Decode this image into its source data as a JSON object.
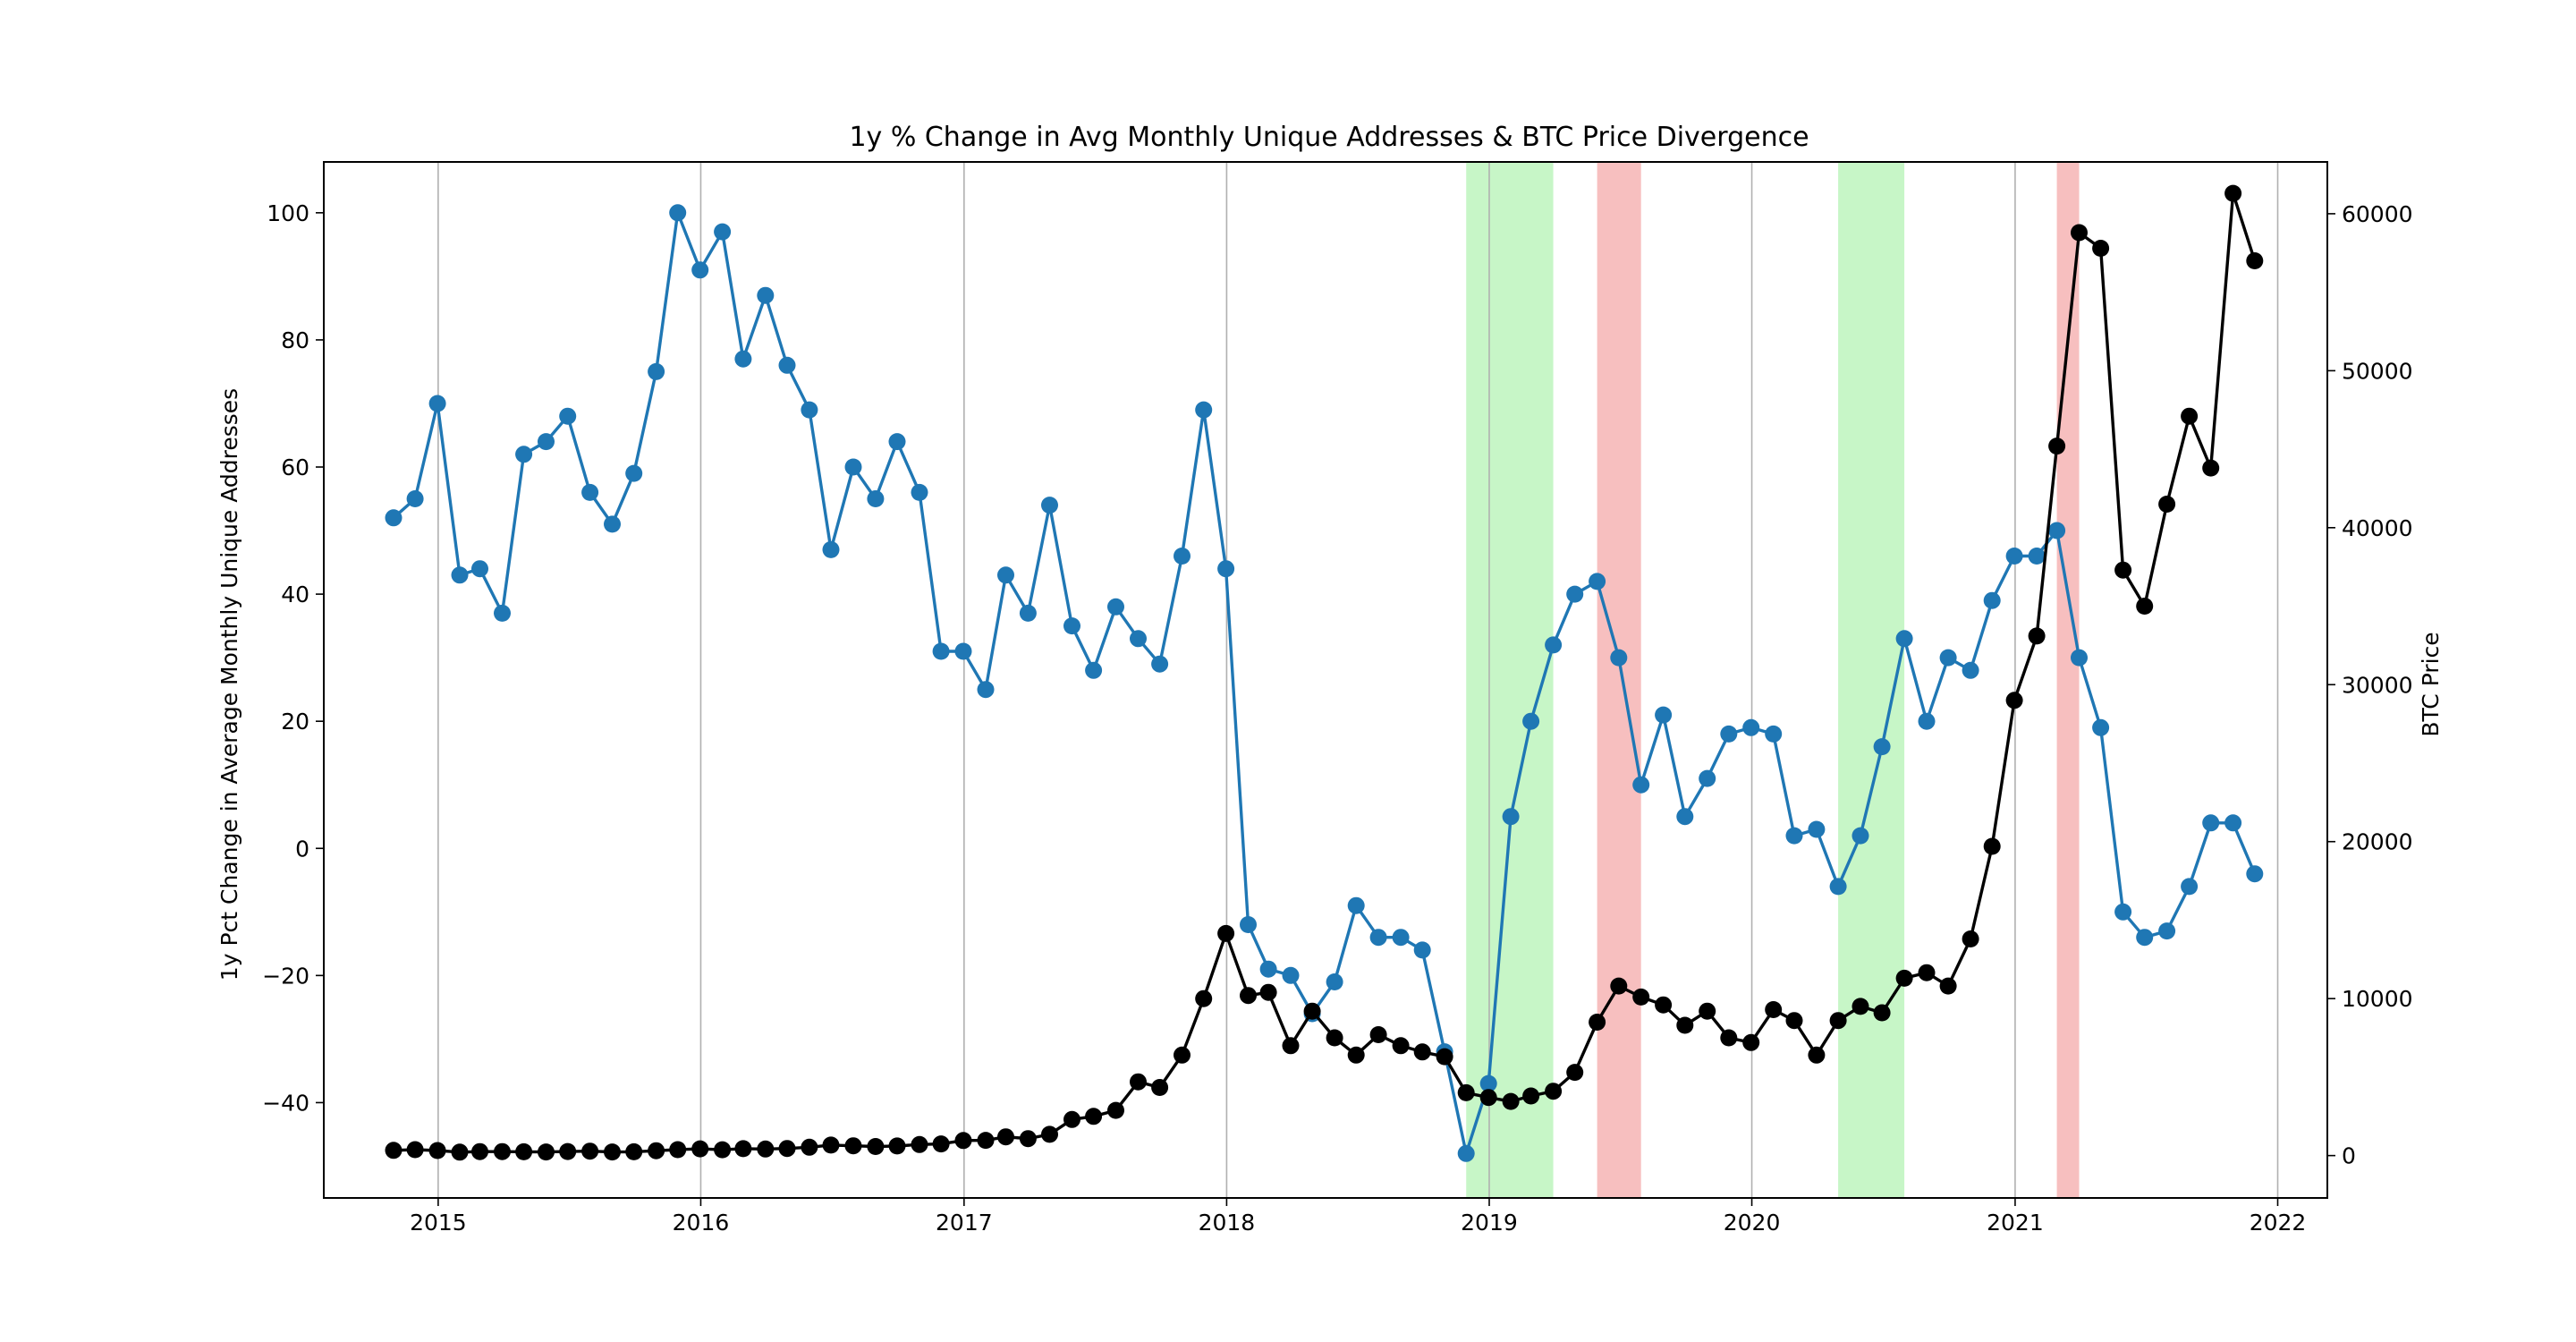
{
  "chart_data": {
    "type": "line",
    "title": "1y % Change in Avg Monthly Unique Addresses & BTC Price Divergence",
    "xlabel": "",
    "ylabel": "1y Pct Change in Average Monthly Unique Addresses",
    "y2label": "BTC Price",
    "x_ticks": [
      "2015",
      "2016",
      "2017",
      "2018",
      "2019",
      "2020",
      "2021",
      "2022"
    ],
    "x_range": [
      "2014-07-26",
      "2022-03-11"
    ],
    "ylim": [
      -55,
      108
    ],
    "y2lim": [
      -2700,
      63300
    ],
    "y_ticks": [
      -40,
      -20,
      0,
      20,
      40,
      60,
      80,
      100
    ],
    "y2_ticks": [
      0,
      10000,
      20000,
      30000,
      40000,
      50000,
      60000
    ],
    "x_grid": true,
    "colors": {
      "addresses": "#1f77b4",
      "btc_price": "#000000",
      "bullish": "#90ee90",
      "bearish": "#f08080"
    },
    "shaded_regions": [
      {
        "type": "bullish",
        "start": "2018-11-30",
        "end": "2019-03-31",
        "color": "#90ee90"
      },
      {
        "type": "bearish",
        "start": "2019-05-31",
        "end": "2019-07-31",
        "color": "#f08080"
      },
      {
        "type": "bullish",
        "start": "2020-04-30",
        "end": "2020-07-31",
        "color": "#90ee90"
      },
      {
        "type": "bearish",
        "start": "2021-02-28",
        "end": "2021-03-31",
        "color": "#f08080"
      }
    ],
    "x": [
      "2014-10-31",
      "2014-11-30",
      "2014-12-31",
      "2015-01-31",
      "2015-02-28",
      "2015-03-31",
      "2015-04-30",
      "2015-05-31",
      "2015-06-30",
      "2015-07-31",
      "2015-08-31",
      "2015-09-30",
      "2015-10-31",
      "2015-11-30",
      "2015-12-31",
      "2016-01-31",
      "2016-02-29",
      "2016-03-31",
      "2016-04-30",
      "2016-05-31",
      "2016-06-30",
      "2016-07-31",
      "2016-08-31",
      "2016-09-30",
      "2016-10-31",
      "2016-11-30",
      "2016-12-31",
      "2017-01-31",
      "2017-02-28",
      "2017-03-31",
      "2017-04-30",
      "2017-05-31",
      "2017-06-30",
      "2017-07-31",
      "2017-08-31",
      "2017-09-30",
      "2017-10-31",
      "2017-11-30",
      "2017-12-31",
      "2018-01-31",
      "2018-02-28",
      "2018-03-31",
      "2018-04-30",
      "2018-05-31",
      "2018-06-30",
      "2018-07-31",
      "2018-08-31",
      "2018-09-30",
      "2018-10-31",
      "2018-11-30",
      "2018-12-31",
      "2019-01-31",
      "2019-02-28",
      "2019-03-31",
      "2019-04-30",
      "2019-05-31",
      "2019-06-30",
      "2019-07-31",
      "2019-08-31",
      "2019-09-30",
      "2019-10-31",
      "2019-11-30",
      "2019-12-31",
      "2020-01-31",
      "2020-02-29",
      "2020-03-31",
      "2020-04-30",
      "2020-05-31",
      "2020-06-30",
      "2020-07-31",
      "2020-08-31",
      "2020-09-30",
      "2020-10-31",
      "2020-11-30",
      "2020-12-31",
      "2021-01-31",
      "2021-02-28",
      "2021-03-31",
      "2021-04-30",
      "2021-05-31",
      "2021-06-30",
      "2021-07-31",
      "2021-08-31",
      "2021-09-30",
      "2021-10-31",
      "2021-11-30"
    ],
    "series": [
      {
        "key": "addresses",
        "axis": "left",
        "values": [
          52,
          55,
          70,
          43,
          44,
          37,
          62,
          64,
          68,
          56,
          51,
          59,
          75,
          100,
          91,
          97,
          77,
          87,
          76,
          69,
          47,
          60,
          55,
          64,
          56,
          31,
          31,
          25,
          43,
          37,
          54,
          35,
          28,
          38,
          33,
          29,
          46,
          69,
          44,
          -12,
          -19,
          -20,
          -26,
          -21,
          -9,
          -14,
          -14,
          -16,
          -32,
          -48,
          -37,
          5,
          20,
          32,
          40,
          42,
          30,
          10,
          21,
          5,
          11,
          18,
          19,
          18,
          2,
          3,
          -6,
          2,
          16,
          33,
          20,
          30,
          28,
          39,
          46,
          46,
          50,
          30,
          19,
          -10,
          -14,
          -13,
          -6,
          4,
          4,
          -4
        ]
      },
      {
        "key": "btc_price",
        "axis": "right",
        "values": [
          330,
          380,
          320,
          220,
          250,
          250,
          240,
          230,
          260,
          280,
          230,
          240,
          310,
          380,
          430,
          370,
          440,
          420,
          450,
          530,
          670,
          620,
          580,
          610,
          700,
          740,
          960,
          970,
          1190,
          1080,
          1350,
          2300,
          2500,
          2880,
          4700,
          4340,
          6400,
          10000,
          14150,
          10200,
          10400,
          7000,
          9200,
          7500,
          6400,
          7700,
          7000,
          6600,
          6300,
          4000,
          3700,
          3450,
          3800,
          4100,
          5300,
          8500,
          10800,
          10100,
          9600,
          8300,
          9200,
          7500,
          7200,
          9300,
          8600,
          6400,
          8600,
          9500,
          9100,
          11300,
          11650,
          10800,
          13800,
          19700,
          29000,
          33100,
          45200,
          58800,
          57800,
          37300,
          35000,
          41500,
          47100,
          43800,
          61300,
          57000
        ]
      }
    ]
  }
}
